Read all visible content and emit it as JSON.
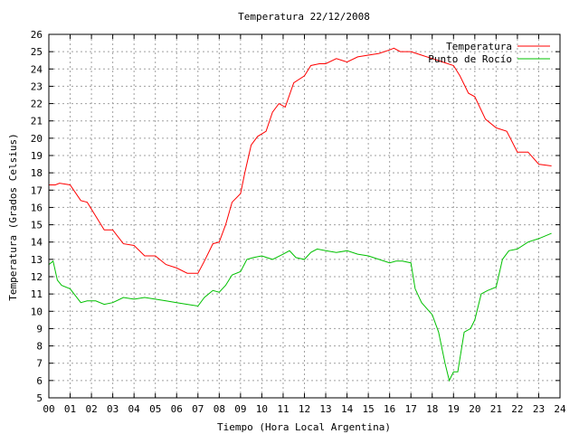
{
  "chart_data": {
    "type": "line",
    "title": "Temperatura 22/12/2008",
    "xlabel": "Tiempo (Hora Local Argentina)",
    "ylabel": "Temperatura (Grados Celsius)",
    "xlim": [
      0,
      24
    ],
    "ylim": [
      5,
      26
    ],
    "x_ticks": [
      "00",
      "01",
      "02",
      "03",
      "04",
      "05",
      "06",
      "07",
      "08",
      "09",
      "10",
      "11",
      "12",
      "13",
      "14",
      "15",
      "16",
      "17",
      "18",
      "19",
      "20",
      "21",
      "22",
      "23",
      "24"
    ],
    "y_ticks": [
      5,
      6,
      7,
      8,
      9,
      10,
      11,
      12,
      13,
      14,
      15,
      16,
      17,
      18,
      19,
      20,
      21,
      22,
      23,
      24,
      25,
      26
    ],
    "grid": true,
    "legend_position": "top-right",
    "series": [
      {
        "name": "Temperatura",
        "color": "#ff0000",
        "x": [
          0,
          0.3,
          0.5,
          1.0,
          1.5,
          1.8,
          2.2,
          2.6,
          3.0,
          3.5,
          4.0,
          4.5,
          5.0,
          5.5,
          6.0,
          6.5,
          7.0,
          7.3,
          7.7,
          8.0,
          8.3,
          8.6,
          9.0,
          9.2,
          9.5,
          9.8,
          10.2,
          10.5,
          10.8,
          11.1,
          11.5,
          12.0,
          12.3,
          12.7,
          13.0,
          13.5,
          14.0,
          14.5,
          15.0,
          15.5,
          16.0,
          16.2,
          16.5,
          17.0,
          17.5,
          18.0,
          18.5,
          19.0,
          19.3,
          19.7,
          20.0,
          20.5,
          21.0,
          21.5,
          22.0,
          22.5,
          23.0,
          23.6
        ],
        "values": [
          17.3,
          17.3,
          17.4,
          17.3,
          16.4,
          16.3,
          15.5,
          14.7,
          14.7,
          13.9,
          13.8,
          13.2,
          13.2,
          12.7,
          12.5,
          12.2,
          12.2,
          12.9,
          13.9,
          14.0,
          15.0,
          16.3,
          16.8,
          18.0,
          19.6,
          20.1,
          20.4,
          21.5,
          22.0,
          21.8,
          23.2,
          23.6,
          24.2,
          24.3,
          24.3,
          24.6,
          24.4,
          24.7,
          24.8,
          24.9,
          25.1,
          25.2,
          25.0,
          25.0,
          24.8,
          24.6,
          24.4,
          24.2,
          23.6,
          22.6,
          22.4,
          21.1,
          20.6,
          20.4,
          19.2,
          19.2,
          18.5,
          18.4
        ]
      },
      {
        "name": "Punto de Rocío",
        "color": "#00c000",
        "x": [
          0,
          0.2,
          0.4,
          0.6,
          1.0,
          1.5,
          1.8,
          2.2,
          2.6,
          3.0,
          3.5,
          4.0,
          4.5,
          5.0,
          5.5,
          6.0,
          6.5,
          7.0,
          7.3,
          7.7,
          8.0,
          8.3,
          8.6,
          9.0,
          9.3,
          9.6,
          10.0,
          10.5,
          11.0,
          11.3,
          11.6,
          12.0,
          12.3,
          12.6,
          13.0,
          13.5,
          14.0,
          14.5,
          15.0,
          15.5,
          16.0,
          16.3,
          16.6,
          17.0,
          17.2,
          17.5,
          18.0,
          18.3,
          18.6,
          18.8,
          19.0,
          19.2,
          19.5,
          19.8,
          20.0,
          20.3,
          20.6,
          21.0,
          21.3,
          21.6,
          22.0,
          22.5,
          23.0,
          23.6
        ],
        "values": [
          12.7,
          12.9,
          11.8,
          11.5,
          11.3,
          10.5,
          10.6,
          10.6,
          10.4,
          10.5,
          10.8,
          10.7,
          10.8,
          10.7,
          10.6,
          10.5,
          10.4,
          10.3,
          10.8,
          11.2,
          11.1,
          11.5,
          12.1,
          12.3,
          13.0,
          13.1,
          13.2,
          13.0,
          13.3,
          13.5,
          13.1,
          13.0,
          13.4,
          13.6,
          13.5,
          13.4,
          13.5,
          13.3,
          13.2,
          13.0,
          12.8,
          12.9,
          12.9,
          12.8,
          11.3,
          10.5,
          9.8,
          8.8,
          7.0,
          6.0,
          6.5,
          6.5,
          8.8,
          9.0,
          9.5,
          11.0,
          11.2,
          11.4,
          13.0,
          13.5,
          13.6,
          14.0,
          14.2,
          14.5
        ]
      }
    ]
  }
}
